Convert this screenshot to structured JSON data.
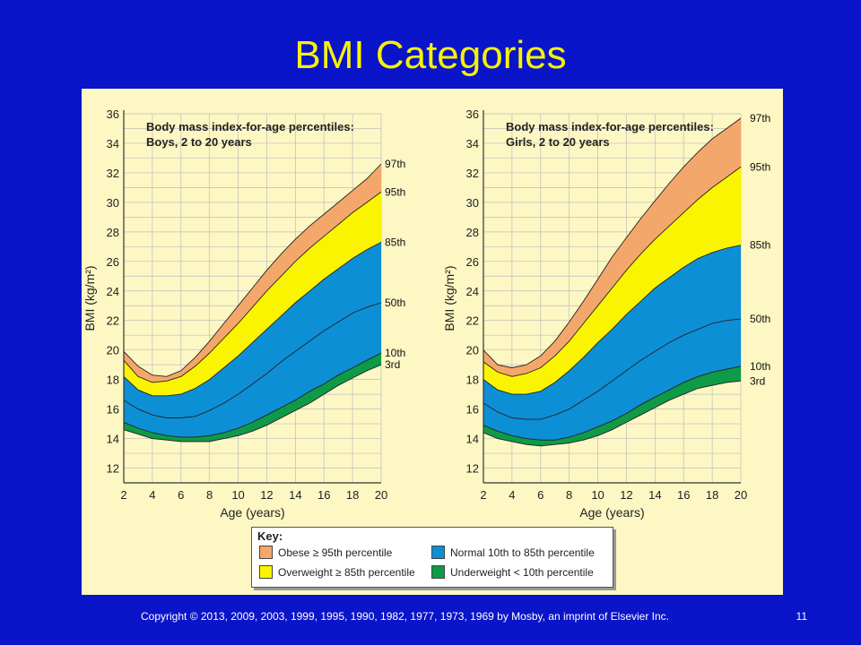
{
  "slide": {
    "title": "BMI Categories",
    "footer": "Copyright © 2013, 2009, 2003, 1999, 1995, 1990, 1982, 1977, 1973, 1969 by Mosby, an imprint of Elsevier Inc.",
    "page_number": "11",
    "colors": {
      "background": "#0a14c8",
      "title": "#f7f200",
      "panel": "#fdf7c4"
    }
  },
  "key": {
    "title": "Key:",
    "items": [
      {
        "label": "Obese ≥ 95th percentile",
        "color": "#f4a76a"
      },
      {
        "label": "Normal 10th to 85th percentile",
        "color": "#0d8fd6"
      },
      {
        "label": "Overweight ≥ 85th percentile",
        "color": "#fbf400"
      },
      {
        "label": "Underweight < 10th percentile",
        "color": "#0f9a47"
      }
    ]
  },
  "chart_data": [
    {
      "type": "area",
      "title": "Body mass index-for-age percentiles:",
      "subtitle": "Boys, 2 to 20 years",
      "xlabel": "Age (years)",
      "ylabel": "BMI (kg/m²)",
      "xlim": [
        2,
        20
      ],
      "ylim": [
        11,
        36
      ],
      "x_ticks": [
        2,
        4,
        6,
        8,
        10,
        12,
        14,
        16,
        18,
        20
      ],
      "y_ticks": [
        12,
        14,
        16,
        18,
        20,
        22,
        24,
        26,
        28,
        30,
        32,
        34,
        36
      ],
      "grid": true,
      "x": [
        2,
        3,
        4,
        5,
        6,
        7,
        8,
        9,
        10,
        11,
        12,
        13,
        14,
        15,
        16,
        17,
        18,
        19,
        20
      ],
      "series": [
        {
          "name": "97th",
          "values": [
            19.9,
            18.9,
            18.3,
            18.2,
            18.6,
            19.5,
            20.6,
            21.8,
            23.0,
            24.2,
            25.4,
            26.5,
            27.5,
            28.4,
            29.2,
            30.0,
            30.8,
            31.6,
            32.6
          ]
        },
        {
          "name": "95th",
          "values": [
            19.3,
            18.2,
            17.8,
            17.9,
            18.2,
            18.9,
            19.8,
            20.8,
            21.8,
            22.9,
            24.0,
            25.0,
            26.0,
            26.9,
            27.7,
            28.5,
            29.3,
            30.0,
            30.7
          ]
        },
        {
          "name": "85th",
          "values": [
            18.2,
            17.3,
            16.9,
            16.9,
            17.0,
            17.4,
            18.0,
            18.8,
            19.6,
            20.5,
            21.4,
            22.3,
            23.2,
            24.0,
            24.8,
            25.5,
            26.2,
            26.8,
            27.3
          ]
        },
        {
          "name": "50th",
          "values": [
            16.6,
            16.0,
            15.6,
            15.4,
            15.4,
            15.5,
            15.9,
            16.4,
            17.0,
            17.7,
            18.4,
            19.2,
            19.9,
            20.6,
            21.3,
            21.9,
            22.5,
            22.9,
            23.2
          ]
        },
        {
          "name": "10th",
          "values": [
            15.1,
            14.7,
            14.4,
            14.2,
            14.1,
            14.1,
            14.2,
            14.4,
            14.7,
            15.1,
            15.6,
            16.1,
            16.6,
            17.2,
            17.7,
            18.3,
            18.8,
            19.3,
            19.8
          ]
        },
        {
          "name": "3rd",
          "values": [
            14.6,
            14.3,
            14.0,
            13.9,
            13.8,
            13.8,
            13.8,
            14.0,
            14.2,
            14.5,
            14.9,
            15.4,
            15.9,
            16.4,
            17.0,
            17.6,
            18.1,
            18.6,
            19.0
          ]
        }
      ]
    },
    {
      "type": "area",
      "title": "Body mass index-for-age percentiles:",
      "subtitle": "Girls, 2 to 20 years",
      "xlabel": "Age (years)",
      "ylabel": "BMI (kg/m²)",
      "xlim": [
        2,
        20
      ],
      "ylim": [
        11,
        36
      ],
      "x_ticks": [
        2,
        4,
        6,
        8,
        10,
        12,
        14,
        16,
        18,
        20
      ],
      "y_ticks": [
        12,
        14,
        16,
        18,
        20,
        22,
        24,
        26,
        28,
        30,
        32,
        34,
        36
      ],
      "grid": true,
      "x": [
        2,
        3,
        4,
        5,
        6,
        7,
        8,
        9,
        10,
        11,
        12,
        13,
        14,
        15,
        16,
        17,
        18,
        19,
        20
      ],
      "series": [
        {
          "name": "97th",
          "values": [
            20.0,
            19.0,
            18.8,
            19.0,
            19.6,
            20.6,
            21.9,
            23.3,
            24.8,
            26.3,
            27.6,
            28.9,
            30.1,
            31.3,
            32.4,
            33.4,
            34.3,
            35.0,
            35.7
          ]
        },
        {
          "name": "95th",
          "values": [
            19.2,
            18.5,
            18.2,
            18.4,
            18.8,
            19.6,
            20.6,
            21.8,
            23.0,
            24.2,
            25.4,
            26.5,
            27.5,
            28.4,
            29.3,
            30.2,
            31.0,
            31.7,
            32.4
          ]
        },
        {
          "name": "85th",
          "values": [
            18.0,
            17.3,
            17.0,
            17.0,
            17.2,
            17.8,
            18.6,
            19.5,
            20.5,
            21.4,
            22.4,
            23.3,
            24.2,
            24.9,
            25.6,
            26.2,
            26.6,
            26.9,
            27.1
          ]
        },
        {
          "name": "50th",
          "values": [
            16.4,
            15.8,
            15.4,
            15.3,
            15.3,
            15.6,
            16.0,
            16.6,
            17.2,
            17.9,
            18.6,
            19.3,
            19.9,
            20.5,
            21.0,
            21.4,
            21.8,
            22.0,
            22.1
          ]
        },
        {
          "name": "10th",
          "values": [
            14.9,
            14.5,
            14.2,
            14.0,
            13.9,
            13.9,
            14.1,
            14.4,
            14.8,
            15.2,
            15.7,
            16.3,
            16.8,
            17.3,
            17.8,
            18.2,
            18.5,
            18.7,
            18.9
          ]
        },
        {
          "name": "3rd",
          "values": [
            14.4,
            14.0,
            13.8,
            13.6,
            13.5,
            13.6,
            13.7,
            13.9,
            14.2,
            14.6,
            15.1,
            15.6,
            16.1,
            16.6,
            17.0,
            17.4,
            17.6,
            17.8,
            17.9
          ]
        }
      ]
    }
  ]
}
